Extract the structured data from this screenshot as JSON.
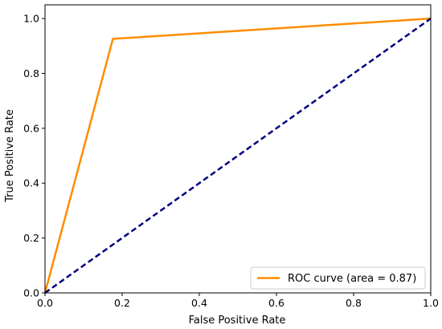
{
  "chart_data": {
    "type": "line",
    "title": "",
    "xlabel": "False Positive Rate",
    "ylabel": "True Positive Rate",
    "xlim": [
      0.0,
      1.0
    ],
    "ylim": [
      0.0,
      1.05
    ],
    "xticks": [
      "0.0",
      "0.2",
      "0.4",
      "0.6",
      "0.8",
      "1.0"
    ],
    "yticks": [
      "0.0",
      "0.2",
      "0.4",
      "0.6",
      "0.8",
      "1.0"
    ],
    "grid": false,
    "legend_position": "lower-right",
    "series": [
      {
        "name": "ROC curve (area = 0.87)",
        "x": [
          0.0,
          0.176,
          1.0
        ],
        "y": [
          0.0,
          0.926,
          1.0
        ],
        "color": "#ff8c00",
        "style": "solid"
      },
      {
        "x": [
          0.0,
          1.0
        ],
        "y": [
          0.0,
          1.0
        ],
        "color": "#000080",
        "style": "dashed"
      }
    ]
  }
}
